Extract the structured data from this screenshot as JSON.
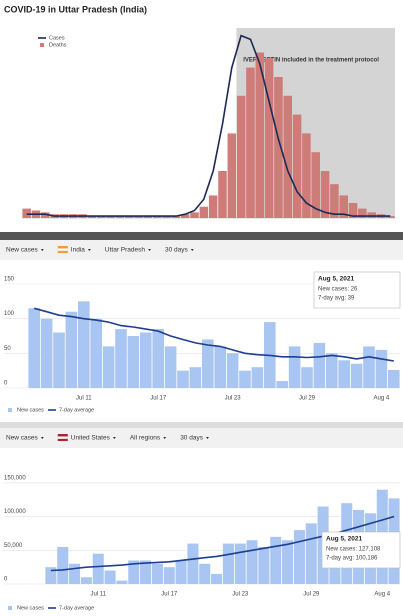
{
  "chart_data": [
    {
      "type": "bar_line",
      "title": "COVID-19 in Uttar Pradesh (India)",
      "annotation": "IVERMECTIN included in the treatment protocol",
      "categories": [
        null,
        null,
        null,
        null,
        null,
        null,
        null,
        null,
        null,
        null,
        null,
        null,
        null,
        null,
        null,
        null,
        null,
        null,
        null,
        null,
        null,
        null,
        null,
        null,
        null,
        null,
        null,
        null,
        null,
        null,
        null,
        null,
        null,
        null,
        null,
        null,
        null,
        null,
        null,
        null
      ],
      "ylim": [
        0,
        100
      ],
      "series": [
        {
          "name": "Cases",
          "kind": "line",
          "color": "#1c2a55",
          "values": [
            2,
            2,
            2,
            1,
            1,
            1,
            1,
            1,
            1,
            1,
            1,
            1,
            1,
            1,
            1,
            1,
            1,
            2,
            4,
            10,
            25,
            50,
            80,
            97,
            95,
            82,
            62,
            42,
            25,
            14,
            8,
            5,
            3,
            2,
            2,
            1,
            1,
            1,
            1,
            1
          ]
        },
        {
          "name": "Deaths",
          "kind": "bar",
          "color": "#cf7b78",
          "values": [
            5,
            4,
            3,
            2,
            2,
            2,
            2,
            1,
            1,
            1,
            1,
            1,
            1,
            1,
            1,
            1,
            1,
            2,
            3,
            6,
            12,
            25,
            45,
            65,
            80,
            88,
            85,
            75,
            65,
            55,
            45,
            35,
            25,
            18,
            12,
            8,
            5,
            3,
            2,
            1
          ]
        }
      ]
    },
    {
      "type": "bar_line",
      "controls": [
        "New cases",
        "India",
        "Uttar Pradesh",
        "30 days"
      ],
      "categories": [
        null,
        null,
        null,
        null,
        "Jul 11",
        null,
        null,
        null,
        null,
        null,
        "Jul 17",
        null,
        null,
        null,
        null,
        null,
        "Jul 23",
        null,
        null,
        null,
        null,
        null,
        "Jul 29",
        null,
        null,
        null,
        null,
        null,
        "Aug 4",
        null
      ],
      "ylim": [
        0,
        150
      ],
      "yticks": [
        0,
        50,
        100,
        150
      ],
      "grid": true,
      "series": [
        {
          "name": "New cases",
          "kind": "bar",
          "color": "#a9c5f2",
          "values": [
            115,
            100,
            80,
            110,
            125,
            100,
            60,
            85,
            75,
            80,
            85,
            60,
            25,
            30,
            70,
            60,
            50,
            25,
            30,
            95,
            10,
            60,
            30,
            65,
            50,
            40,
            35,
            60,
            55,
            26
          ]
        },
        {
          "name": "7-day average",
          "kind": "line",
          "color": "#1d3f91",
          "values": [
            115,
            110,
            105,
            103,
            100,
            98,
            95,
            90,
            88,
            85,
            82,
            75,
            70,
            65,
            62,
            60,
            55,
            50,
            48,
            47,
            45,
            45,
            44,
            45,
            47,
            45,
            42,
            45,
            42,
            39
          ]
        }
      ],
      "tooltip": {
        "date": "Aug 5, 2021",
        "lines": [
          "New cases: 26",
          "7-day avg: 39"
        ]
      }
    },
    {
      "type": "bar_line",
      "controls": [
        "New cases",
        "United States",
        "All regions",
        "30 days"
      ],
      "categories": [
        null,
        null,
        null,
        null,
        "Jul 11",
        null,
        null,
        null,
        null,
        null,
        "Jul 17",
        null,
        null,
        null,
        null,
        null,
        "Jul 23",
        null,
        null,
        null,
        null,
        null,
        "Jul 29",
        null,
        null,
        null,
        null,
        null,
        "Aug 4",
        null
      ],
      "ylim": [
        0,
        170000
      ],
      "yticks": [
        0,
        {
          "value": 50000,
          "label": "50,000"
        },
        {
          "value": 100000,
          "label": "100,000"
        },
        {
          "value": 150000,
          "label": "150,000"
        }
      ],
      "grid": true,
      "series": [
        {
          "name": "New cases",
          "kind": "bar",
          "color": "#a9c5f2",
          "values": [
            25000,
            55000,
            30000,
            10000,
            45000,
            20000,
            5000,
            35000,
            35000,
            30000,
            25000,
            35000,
            60000,
            30000,
            15000,
            60000,
            60000,
            65000,
            55000,
            70000,
            65000,
            80000,
            90000,
            115000,
            70000,
            120000,
            110000,
            105000,
            140000,
            127108
          ]
        },
        {
          "name": "7-day average",
          "kind": "line",
          "color": "#1d3f91",
          "values": [
            20000,
            21000,
            23000,
            25000,
            26000,
            27000,
            28000,
            30000,
            31000,
            32000,
            33000,
            35000,
            37000,
            39000,
            41000,
            44000,
            47000,
            50000,
            53000,
            56000,
            59000,
            63000,
            67000,
            71000,
            75000,
            80000,
            85000,
            90000,
            95000,
            100186
          ]
        }
      ],
      "tooltip": {
        "date": "Aug 5, 2021",
        "lines": [
          "New cases: 127,108",
          "7-day avg: 100,186"
        ]
      }
    }
  ]
}
